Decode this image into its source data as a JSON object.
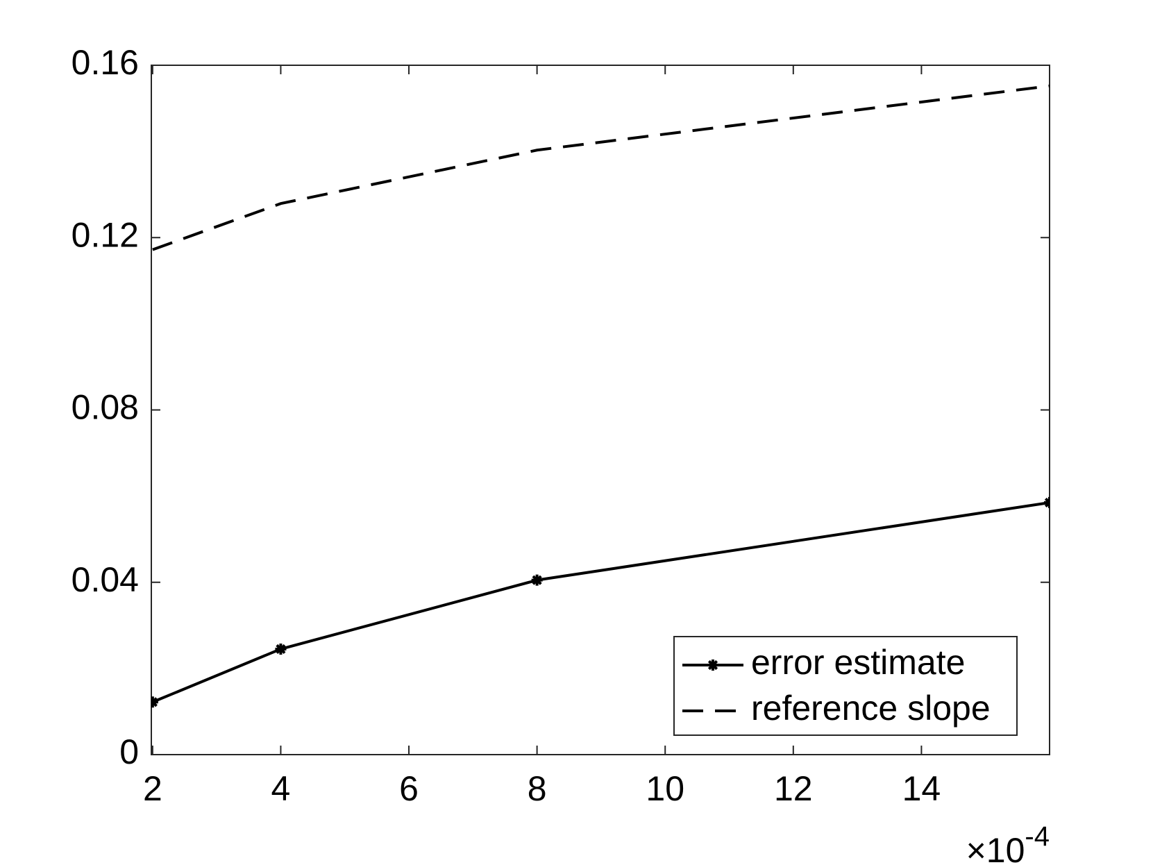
{
  "chart_data": {
    "type": "line",
    "x": [
      0.0002,
      0.0004,
      0.0008,
      0.0016
    ],
    "series": [
      {
        "name": "error estimate",
        "color": "#000000",
        "dash": false,
        "marker": "asterisk",
        "values": [
          0.0122,
          0.0245,
          0.0405,
          0.0585
        ]
      },
      {
        "name": "reference slope",
        "color": "#000000",
        "dash": true,
        "values": [
          0.1172,
          0.1279,
          0.1403,
          0.1552
        ]
      }
    ],
    "xlim": [
      0.000198,
      0.0016
    ],
    "xticks": [
      {
        "value": 0.0002,
        "label": "2"
      },
      {
        "value": 0.0004,
        "label": "4"
      },
      {
        "value": 0.0006,
        "label": "6"
      },
      {
        "value": 0.0008,
        "label": "8"
      },
      {
        "value": 0.001,
        "label": "10"
      },
      {
        "value": 0.0012,
        "label": "12"
      },
      {
        "value": 0.0014,
        "label": "14"
      }
    ],
    "x_multiplier_base": "×10",
    "x_multiplier_exponent": "-4",
    "ylim": [
      0,
      0.16
    ],
    "yticks": [
      0,
      0.04,
      0.08,
      0.12,
      0.16
    ],
    "grid": false,
    "legend": "southeast"
  }
}
